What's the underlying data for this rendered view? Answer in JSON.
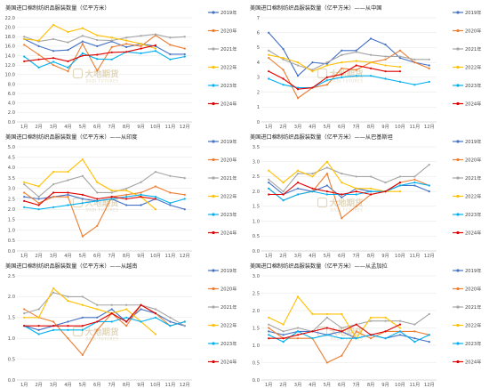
{
  "months": [
    "1月",
    "2月",
    "3月",
    "4月",
    "5月",
    "6月",
    "7月",
    "8月",
    "9月",
    "10月",
    "11月",
    "12月"
  ],
  "watermark": {
    "name": "大地期货",
    "sub": "DADI FUTURES"
  },
  "colors": {
    "2019年": "#4472c4",
    "2020年": "#ed7d31",
    "2021年": "#a5a5a5",
    "2022年": "#ffc000",
    "2023年": "#00b0f0",
    "2024年": "#e00000"
  },
  "chart_data": [
    {
      "type": "line",
      "title": "美国进口棉制纺织品服装数量（亿平方米）",
      "ylim": [
        0,
        22
      ],
      "yticks": [
        0,
        2,
        4,
        6,
        8,
        10,
        12,
        14,
        16,
        18,
        20,
        22
      ],
      "ytick_labels": [
        "0.0",
        "2.0",
        "4.0",
        "6.0",
        "8.0",
        "10.0",
        "12.0",
        "14.0",
        "16.0",
        "18.0",
        "20.0",
        "22.0"
      ],
      "series": [
        {
          "name": "2019年",
          "values": [
            17.5,
            16.0,
            15.0,
            15.2,
            17.0,
            16.0,
            17.0,
            15.8,
            16.5,
            16.0,
            14.3,
            14.3
          ]
        },
        {
          "name": "2020年",
          "values": [
            16.3,
            14.2,
            12.0,
            10.7,
            16.5,
            10.8,
            15.8,
            16.5,
            16.0,
            18.3,
            16.3,
            15.5
          ]
        },
        {
          "name": "2021年",
          "values": [
            18.0,
            17.0,
            17.5,
            16.8,
            18.2,
            17.3,
            17.2,
            17.8,
            18.2,
            18.5,
            17.8,
            18.0
          ]
        },
        {
          "name": "2022年",
          "values": [
            17.5,
            17.2,
            20.5,
            19.0,
            19.8,
            18.3,
            17.8,
            17.2,
            16.5,
            15.5,
            null,
            null
          ]
        },
        {
          "name": "2023年",
          "values": [
            13.8,
            11.5,
            12.7,
            11.5,
            14.5,
            13.3,
            13.2,
            14.8,
            14.5,
            15.0,
            13.2,
            13.8
          ]
        },
        {
          "name": "2024年",
          "values": [
            12.8,
            13.2,
            13.5,
            12.8,
            14.0,
            14.2,
            14.7,
            14.8,
            15.5,
            16.2,
            null,
            null
          ]
        }
      ],
      "legend": [
        "2019年",
        "2020年",
        "2021年",
        "2022年",
        "2023年",
        "2024年"
      ]
    },
    {
      "type": "line",
      "title": "美国进口棉制纺织品服装数量（亿平方米）——从中国",
      "ylim": [
        0,
        7
      ],
      "yticks": [
        0,
        1,
        2,
        3,
        4,
        5,
        6,
        7
      ],
      "ytick_labels": [
        "0",
        "1",
        "2",
        "3",
        "4",
        "5",
        "6",
        "7"
      ],
      "series": [
        {
          "name": "2019年",
          "values": [
            6.0,
            4.9,
            3.1,
            4.0,
            3.9,
            4.8,
            4.8,
            5.6,
            5.2,
            4.3,
            4.0,
            3.8
          ]
        },
        {
          "name": "2020年",
          "values": [
            4.3,
            3.5,
            1.6,
            2.3,
            2.5,
            3.6,
            3.5,
            4.0,
            4.2,
            4.8,
            4.0,
            3.6
          ]
        },
        {
          "name": "2021年",
          "values": [
            4.8,
            4.2,
            3.8,
            3.5,
            4.0,
            4.5,
            4.7,
            4.5,
            4.4,
            4.4,
            4.2,
            4.2
          ]
        },
        {
          "name": "2022年",
          "values": [
            4.5,
            4.3,
            4.0,
            3.4,
            3.8,
            4.0,
            4.1,
            4.0,
            3.8,
            3.7,
            null,
            null
          ]
        },
        {
          "name": "2023年",
          "values": [
            2.9,
            2.5,
            2.3,
            2.3,
            2.8,
            3.0,
            3.1,
            3.1,
            2.9,
            2.7,
            2.5,
            2.7
          ]
        },
        {
          "name": "2024年",
          "values": [
            3.4,
            2.9,
            2.2,
            2.3,
            3.0,
            3.2,
            3.8,
            3.6,
            3.4,
            3.4,
            null,
            null
          ]
        }
      ],
      "legend": [
        "2019年",
        "2020年",
        "2021年",
        "2022年",
        "2023年",
        "2024年"
      ]
    },
    {
      "type": "line",
      "title": "美国进口棉制纺织品服装数量（亿平方米）——从印度",
      "ylim": [
        0,
        5
      ],
      "yticks": [
        0,
        0.5,
        1,
        1.5,
        2,
        2.5,
        3,
        3.5,
        4,
        4.5,
        5
      ],
      "ytick_labels": [
        "0.0",
        "0.5",
        "1.0",
        "1.5",
        "2.0",
        "2.5",
        "3.0",
        "3.5",
        "4.0",
        "4.5",
        "5.0"
      ],
      "series": [
        {
          "name": "2019年",
          "values": [
            2.6,
            2.5,
            2.6,
            2.7,
            2.5,
            2.4,
            2.5,
            2.2,
            2.2,
            2.5,
            2.2,
            2.0
          ]
        },
        {
          "name": "2020年",
          "values": [
            2.8,
            2.3,
            2.6,
            2.6,
            0.7,
            1.2,
            2.6,
            2.7,
            2.8,
            3.1,
            2.8,
            2.7
          ]
        },
        {
          "name": "2021年",
          "values": [
            3.2,
            2.6,
            3.2,
            3.4,
            3.6,
            2.8,
            2.8,
            3.0,
            3.3,
            3.8,
            3.6,
            3.5
          ]
        },
        {
          "name": "2022年",
          "values": [
            3.3,
            3.1,
            3.8,
            3.8,
            4.4,
            3.3,
            2.9,
            2.9,
            2.6,
            2.0,
            null,
            null
          ]
        },
        {
          "name": "2023年",
          "values": [
            2.1,
            2.0,
            2.1,
            2.2,
            2.3,
            2.4,
            2.5,
            2.6,
            2.7,
            2.6,
            2.3,
            2.5
          ]
        },
        {
          "name": "2024年",
          "values": [
            2.4,
            2.2,
            2.8,
            2.8,
            2.7,
            2.5,
            2.6,
            2.5,
            2.6,
            2.5,
            null,
            null
          ]
        }
      ],
      "legend": [
        "2019年",
        "2020年",
        "2021年",
        "2022年",
        "2023年",
        "2024年"
      ]
    },
    {
      "type": "line",
      "title": "美国进口棉制纺织品服装数量（亿平方米）——从巴基斯坦",
      "ylim": [
        0,
        3.5
      ],
      "yticks": [
        0,
        0.5,
        1,
        1.5,
        2,
        2.5,
        3,
        3.5
      ],
      "ytick_labels": [
        "0.0",
        "0.5",
        "1.0",
        "1.5",
        "2.0",
        "2.5",
        "3.0",
        "3.5"
      ],
      "series": [
        {
          "name": "2019年",
          "values": [
            2.3,
            1.9,
            2.1,
            2.0,
            2.2,
            1.8,
            2.1,
            2.0,
            2.0,
            2.2,
            2.2,
            2.0
          ]
        },
        {
          "name": "2020年",
          "values": [
            2.1,
            1.7,
            1.9,
            2.0,
            2.6,
            1.1,
            1.5,
            1.9,
            2.0,
            2.3,
            2.4,
            2.2
          ]
        },
        {
          "name": "2021年",
          "values": [
            2.4,
            2.0,
            2.6,
            2.6,
            2.8,
            2.6,
            2.5,
            2.5,
            2.3,
            2.5,
            2.5,
            2.9
          ]
        },
        {
          "name": "2022年",
          "values": [
            2.7,
            2.3,
            2.7,
            2.5,
            3.0,
            2.3,
            2.1,
            2.1,
            2.0,
            2.0,
            null,
            null
          ]
        },
        {
          "name": "2023年",
          "values": [
            2.1,
            1.7,
            1.9,
            2.0,
            1.9,
            1.9,
            1.9,
            2.0,
            2.0,
            2.2,
            2.3,
            2.2
          ]
        },
        {
          "name": "2024年",
          "values": [
            1.9,
            1.9,
            2.3,
            2.1,
            2.0,
            1.9,
            2.0,
            1.9,
            2.0,
            2.3,
            null,
            null
          ]
        }
      ],
      "legend": [
        "2019年",
        "2020年",
        "2021年",
        "2022年",
        "2023年",
        "2024年"
      ]
    },
    {
      "type": "line",
      "title": "美国进口棉制纺织品服装数量（亿平方米）——从越南",
      "ylim": [
        0,
        2.5
      ],
      "yticks": [
        0,
        0.5,
        1,
        1.5,
        2,
        2.5
      ],
      "ytick_labels": [
        "0.0",
        "0.5",
        "1.0",
        "1.5",
        "2.0",
        "2.5"
      ],
      "series": [
        {
          "name": "2019年",
          "values": [
            1.3,
            1.2,
            1.3,
            1.4,
            1.5,
            1.5,
            1.7,
            1.4,
            1.7,
            1.6,
            1.4,
            1.3
          ]
        },
        {
          "name": "2020年",
          "values": [
            1.7,
            1.5,
            1.4,
            1.0,
            0.6,
            1.2,
            1.6,
            1.3,
            1.8,
            1.6,
            1.3,
            1.4
          ]
        },
        {
          "name": "2021年",
          "values": [
            1.6,
            1.7,
            2.1,
            2.0,
            2.0,
            1.8,
            1.8,
            1.8,
            1.8,
            1.7,
            1.5,
            1.3
          ]
        },
        {
          "name": "2022年",
          "values": [
            1.5,
            1.5,
            2.2,
            1.9,
            1.8,
            1.7,
            1.6,
            1.7,
            1.4,
            1.1,
            null,
            null
          ]
        },
        {
          "name": "2023年",
          "values": [
            1.3,
            1.1,
            1.2,
            1.2,
            1.2,
            1.4,
            1.4,
            1.5,
            1.4,
            1.5,
            1.3,
            1.4
          ]
        },
        {
          "name": "2024年",
          "values": [
            1.3,
            1.3,
            1.3,
            1.3,
            1.3,
            1.4,
            1.6,
            1.4,
            1.8,
            1.6,
            null,
            null
          ]
        }
      ],
      "legend": [
        "2019年",
        "2020年",
        "2021年",
        "2022年",
        "2023年",
        "2024年"
      ]
    },
    {
      "type": "line",
      "title": "美国进口棉制纺织品服装数量（亿平方米）——从孟加拉",
      "ylim": [
        0,
        3
      ],
      "yticks": [
        0,
        0.5,
        1,
        1.5,
        2,
        2.5,
        3
      ],
      "ytick_labels": [
        "0.0",
        "0.5",
        "1.0",
        "1.5",
        "2.0",
        "2.5",
        "3.0"
      ],
      "series": [
        {
          "name": "2019年",
          "values": [
            1.4,
            1.3,
            1.4,
            1.4,
            1.3,
            1.4,
            1.2,
            1.3,
            1.2,
            1.3,
            1.2,
            1.1
          ]
        },
        {
          "name": "2020年",
          "values": [
            1.5,
            1.2,
            1.2,
            1.2,
            0.5,
            0.7,
            1.4,
            1.2,
            1.4,
            1.4,
            1.4,
            1.3
          ]
        },
        {
          "name": "2021年",
          "values": [
            1.6,
            1.4,
            1.5,
            1.4,
            1.8,
            1.5,
            1.6,
            1.7,
            1.7,
            1.7,
            1.6,
            1.9
          ]
        },
        {
          "name": "2022年",
          "values": [
            1.8,
            1.6,
            2.4,
            1.9,
            1.9,
            1.9,
            1.2,
            1.8,
            1.8,
            1.5,
            null,
            null
          ]
        },
        {
          "name": "2023年",
          "values": [
            1.3,
            1.1,
            1.4,
            1.2,
            1.3,
            1.2,
            1.2,
            1.3,
            1.2,
            1.4,
            1.1,
            1.3
          ]
        },
        {
          "name": "2024年",
          "values": [
            1.2,
            1.2,
            1.3,
            1.4,
            1.5,
            1.4,
            1.6,
            1.3,
            1.4,
            1.6,
            null,
            null
          ]
        }
      ],
      "legend": [
        "2019年",
        "2020年",
        "2021年",
        "2022年",
        "2023年",
        "2024年"
      ]
    }
  ]
}
